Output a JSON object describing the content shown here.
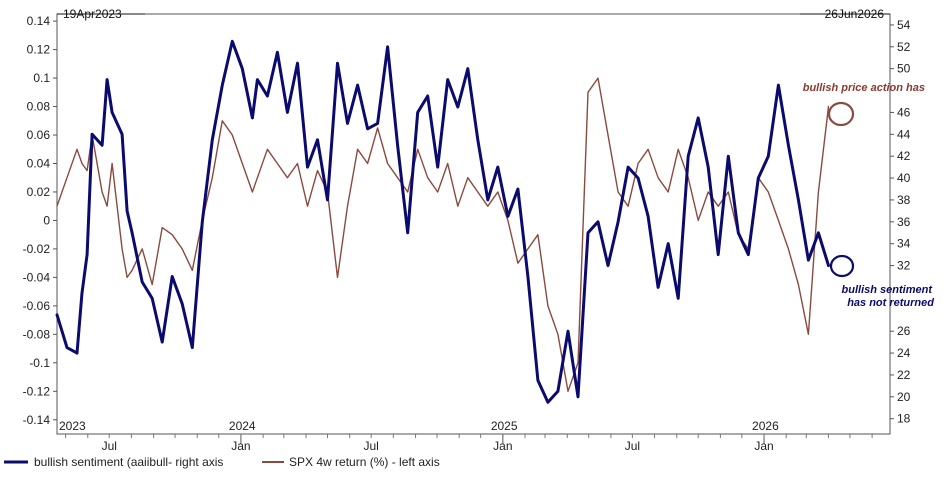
{
  "chart_data": {
    "type": "line",
    "start_date_label": "19Apr2023",
    "end_date_label": "26Jun2026",
    "x_axis": {
      "year_labels": [
        "2023",
        "2024",
        "2025",
        "2026"
      ],
      "month_labels": [
        "Jul",
        "Jan",
        "Jul",
        "Jan",
        "Jul",
        "Jan"
      ]
    },
    "left_axis": {
      "ylim": [
        -0.15,
        0.145
      ],
      "ticks": [
        -0.14,
        -0.12,
        -0.1,
        -0.08,
        -0.06,
        -0.04,
        -0.02,
        0,
        0.02,
        0.04,
        0.06,
        0.08,
        0.1,
        0.12,
        0.14
      ],
      "tick_labels": [
        "-0.14",
        "-0.12",
        "-0.1",
        "-0.08",
        "-0.06",
        "-0.04",
        "-0.02",
        "0",
        "0.02",
        "0.04",
        "0.06",
        "0.08",
        "0.1",
        "0.12",
        "0.14"
      ]
    },
    "right_axis": {
      "ylim": [
        16.6,
        55
      ],
      "ticks": [
        18,
        20,
        22,
        24,
        26,
        32,
        34,
        36,
        38,
        40,
        42,
        44,
        46,
        50,
        52,
        54
      ],
      "tick_labels": [
        "18",
        "20",
        "22",
        "24",
        "26",
        "32",
        "34",
        "36",
        "38",
        "40",
        "42",
        "44",
        "46",
        "50",
        "52",
        "54"
      ]
    },
    "series": [
      {
        "name": "bullish sentiment (aaiibull- right axis",
        "axis": "right",
        "color": "#0b0b6e",
        "x": [
          "2023-04-19",
          "2023-05-03",
          "2023-05-17",
          "2023-05-24",
          "2023-05-31",
          "2023-06-07",
          "2023-06-21",
          "2023-06-28",
          "2023-07-05",
          "2023-07-19",
          "2023-07-26",
          "2023-08-02",
          "2023-08-16",
          "2023-08-30",
          "2023-09-13",
          "2023-09-27",
          "2023-10-11",
          "2023-10-25",
          "2023-11-08",
          "2023-11-22",
          "2023-12-06",
          "2023-12-20",
          "2024-01-03",
          "2024-01-17",
          "2024-01-24",
          "2024-02-07",
          "2024-02-21",
          "2024-03-06",
          "2024-03-20",
          "2024-04-03",
          "2024-04-17",
          "2024-05-01",
          "2024-05-15",
          "2024-05-29",
          "2024-06-12",
          "2024-06-26",
          "2024-07-10",
          "2024-07-24",
          "2024-08-07",
          "2024-08-21",
          "2024-09-04",
          "2024-09-18",
          "2024-10-02",
          "2024-10-16",
          "2024-10-30",
          "2024-11-13",
          "2024-11-27",
          "2024-12-11",
          "2024-12-25",
          "2025-01-08",
          "2025-01-22",
          "2025-02-05",
          "2025-02-19",
          "2025-03-05",
          "2025-03-19",
          "2025-04-02",
          "2025-04-16",
          "2025-04-30",
          "2025-05-14",
          "2025-05-28",
          "2025-06-11",
          "2025-06-25",
          "2025-07-09",
          "2025-07-23",
          "2025-08-06",
          "2025-08-20",
          "2025-09-03",
          "2025-09-17",
          "2025-10-01",
          "2025-10-15",
          "2025-10-29",
          "2025-11-12",
          "2025-11-26",
          "2025-12-10",
          "2025-12-24",
          "2026-01-07",
          "2026-01-21",
          "2026-02-04",
          "2026-02-18",
          "2026-03-04",
          "2026-03-18",
          "2026-04-01"
        ],
        "values": [
          27.5,
          24.5,
          24.0,
          29.5,
          33.0,
          44.0,
          43.0,
          49.0,
          46.0,
          44.0,
          37.0,
          35.0,
          30.5,
          29.0,
          25.0,
          31.0,
          28.5,
          24.5,
          36.0,
          43.5,
          48.5,
          52.5,
          50.0,
          45.5,
          49.0,
          47.5,
          51.5,
          46.0,
          50.5,
          41.0,
          43.5,
          38.0,
          50.5,
          45.0,
          48.5,
          44.5,
          45.0,
          52.0,
          43.0,
          35.0,
          46.0,
          47.5,
          41.0,
          49.0,
          46.5,
          50.0,
          43.5,
          38.0,
          41.0,
          36.5,
          39.0,
          31.0,
          21.5,
          19.5,
          20.5,
          26.0,
          20.0,
          35.0,
          36.0,
          32.0,
          36.0,
          41.0,
          40.0,
          36.5,
          30.0,
          34.0,
          29.0,
          42.0,
          45.5,
          41.0,
          33.0,
          42.0,
          35.0,
          33.0,
          40.0,
          42.0,
          48.5,
          43.0,
          38.0,
          32.5,
          35.0,
          32.0
        ]
      },
      {
        "name": "SPX 4w return (%) - left axis",
        "axis": "left",
        "color": "#8b4a3e",
        "x": [
          "2023-04-19",
          "2023-05-03",
          "2023-05-17",
          "2023-05-24",
          "2023-05-31",
          "2023-06-07",
          "2023-06-21",
          "2023-06-28",
          "2023-07-05",
          "2023-07-19",
          "2023-07-26",
          "2023-08-02",
          "2023-08-16",
          "2023-08-30",
          "2023-09-13",
          "2023-09-27",
          "2023-10-11",
          "2023-10-25",
          "2023-11-08",
          "2023-11-22",
          "2023-12-06",
          "2023-12-20",
          "2024-01-03",
          "2024-01-17",
          "2024-01-24",
          "2024-02-07",
          "2024-02-21",
          "2024-03-06",
          "2024-03-20",
          "2024-04-03",
          "2024-04-17",
          "2024-05-01",
          "2024-05-15",
          "2024-05-29",
          "2024-06-12",
          "2024-06-26",
          "2024-07-10",
          "2024-07-24",
          "2024-08-07",
          "2024-08-21",
          "2024-09-04",
          "2024-09-18",
          "2024-10-02",
          "2024-10-16",
          "2024-10-30",
          "2024-11-13",
          "2024-11-27",
          "2024-12-11",
          "2024-12-25",
          "2025-01-08",
          "2025-01-22",
          "2025-02-05",
          "2025-02-19",
          "2025-03-05",
          "2025-03-19",
          "2025-04-02",
          "2025-04-16",
          "2025-04-30",
          "2025-05-14",
          "2025-05-28",
          "2025-06-11",
          "2025-06-25",
          "2025-07-09",
          "2025-07-23",
          "2025-08-06",
          "2025-08-20",
          "2025-09-03",
          "2025-09-17",
          "2025-10-01",
          "2025-10-15",
          "2025-10-29",
          "2025-11-12",
          "2025-11-26",
          "2025-12-10",
          "2025-12-24",
          "2026-01-07",
          "2026-01-21",
          "2026-02-04",
          "2026-02-18",
          "2026-03-04",
          "2026-03-18",
          "2026-04-01"
        ],
        "values": [
          0.01,
          0.03,
          0.05,
          0.04,
          0.035,
          0.06,
          0.02,
          0.01,
          0.04,
          -0.02,
          -0.04,
          -0.035,
          -0.02,
          -0.045,
          -0.005,
          -0.01,
          -0.02,
          -0.035,
          0.0,
          0.03,
          0.07,
          0.06,
          0.04,
          0.02,
          0.03,
          0.05,
          0.04,
          0.03,
          0.04,
          0.01,
          0.035,
          0.02,
          -0.04,
          0.01,
          0.05,
          0.04,
          0.065,
          0.04,
          0.03,
          0.02,
          0.05,
          0.03,
          0.02,
          0.04,
          0.01,
          0.03,
          0.02,
          0.01,
          0.02,
          0.0,
          -0.03,
          -0.02,
          -0.01,
          -0.06,
          -0.08,
          -0.12,
          -0.1,
          0.09,
          0.1,
          0.06,
          0.02,
          0.01,
          0.04,
          0.05,
          0.03,
          0.02,
          0.05,
          0.03,
          0.0,
          0.02,
          0.01,
          0.02,
          -0.01,
          -0.02,
          0.03,
          0.02,
          0.0,
          -0.02,
          -0.045,
          -0.08,
          0.02,
          0.08
        ]
      }
    ],
    "annotations": [
      {
        "id": "price",
        "lines": [
          "bullish price action has"
        ]
      },
      {
        "id": "sentiment",
        "lines": [
          "bullish sentiment",
          "has not returned"
        ]
      }
    ],
    "legend": {
      "placement": "bottom-left",
      "entries": [
        {
          "label": "bullish sentiment (aaiibull- right axis",
          "color": "#0b0b6e"
        },
        {
          "label": "SPX 4w return (%) - left axis",
          "color": "#8b4a3e"
        }
      ]
    },
    "colors": {
      "price_circle": "#8b4a3e",
      "sentiment_circle": "#0b0b6e"
    }
  }
}
